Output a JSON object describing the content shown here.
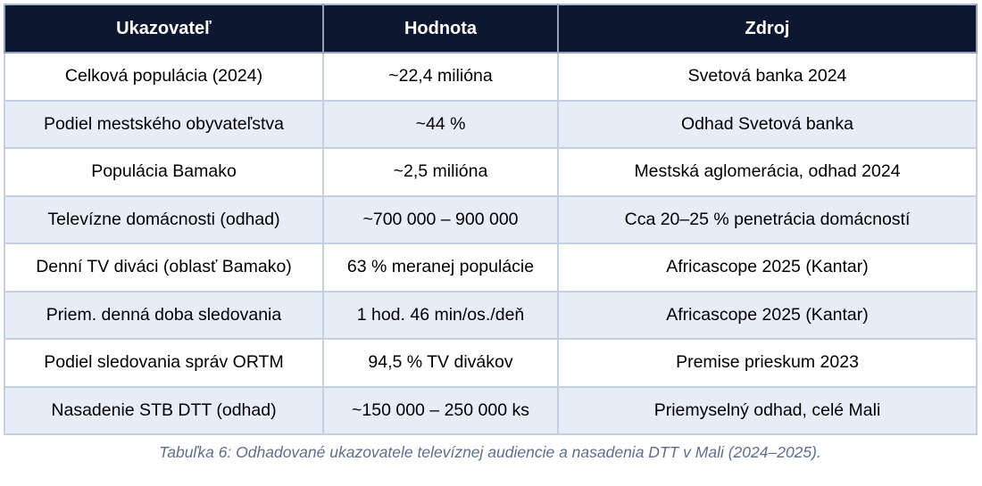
{
  "table": {
    "columns": {
      "indicator": "Ukazovateľ",
      "value": "Hodnota",
      "source": "Zdroj"
    },
    "rows": [
      {
        "indicator": "Celková populácia (2024)",
        "value": "~22,4 milióna",
        "source": "Svetová banka 2024"
      },
      {
        "indicator": "Podiel mestského obyvateľstva",
        "value": "~44 %",
        "source": "Odhad Svetová banka"
      },
      {
        "indicator": "Populácia Bamako",
        "value": "~2,5 milióna",
        "source": "Mestská aglomerácia, odhad 2024"
      },
      {
        "indicator": "Televízne domácnosti (odhad)",
        "value": "~700 000 – 900 000",
        "source": "Cca 20–25 % penetrácia domácností"
      },
      {
        "indicator": "Denní TV diváci (oblasť Bamako)",
        "value": "63 % meranej populácie",
        "source": "Africascope 2025 (Kantar)"
      },
      {
        "indicator": "Priem. denná doba sledovania",
        "value": "1 hod. 46 min/os./deň",
        "source": "Africascope 2025 (Kantar)"
      },
      {
        "indicator": "Podiel sledovania správ ORTM",
        "value": "94,5 % TV divákov",
        "source": "Premise prieskum 2023"
      },
      {
        "indicator": "Nasadenie STB DTT (odhad)",
        "value": "~150 000 – 250 000 ks",
        "source": "Priemyselný odhad, celé Mali"
      }
    ]
  },
  "caption": "Tabuľka 6: Odhadované ukazovatele televíznej audiencie a nasadenia DTT v Mali (2024–2025).",
  "colors": {
    "header_bg": "#0d1830",
    "header_text": "#ffffff",
    "row_alt_bg": "#e7edf6",
    "grid_border": "#c3d0e3",
    "outer_border": "#a8bad2",
    "caption_text": "#5c6e90"
  }
}
